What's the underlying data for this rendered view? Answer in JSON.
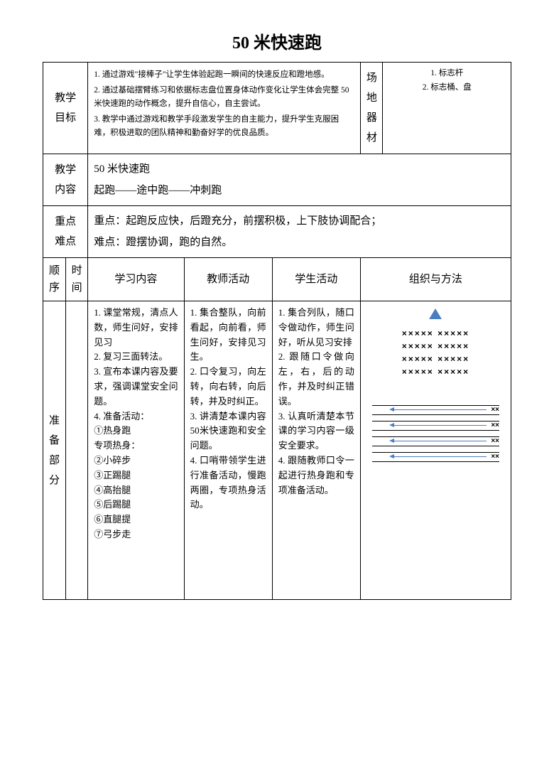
{
  "title": "50 米快速跑",
  "row1": {
    "label_goals_1": "教学",
    "label_goals_2": "目标",
    "goals_1": "1. 通过游戏\"接棒子\"让学生体验起跑一瞬间的快速反应和蹬地感。",
    "goals_2": "2. 通过基础摆臂练习和依据标志盘位置身体动作变化让学生体会完整 50 米快速跑的动作概念，提升自信心，自主尝试。",
    "goals_3": "3. 教学中通过游戏和教学手段激发学生的自主能力，提升学生克服困难，积极进取的团队精神和勤奋好学的优良品质。",
    "label_equip_1": "场",
    "label_equip_2": "地",
    "label_equip_3": "器",
    "label_equip_4": "材",
    "equip_1": "1. 标志杆",
    "equip_2": "2. 标志桶、盘"
  },
  "row2": {
    "label_1": "教学",
    "label_2": "内容",
    "line1": "50 米快速跑",
    "line2": "起跑——途中跑——冲刺跑"
  },
  "row3": {
    "label_1": "重点",
    "label_2": "难点",
    "line1": "重点：起跑反应快，后蹬充分，前摆积极，上下肢协调配合；",
    "line2": "难点：蹬摆协调，跑的自然。"
  },
  "headers": {
    "c1a": "顺",
    "c1b": "序",
    "c2a": "时",
    "c2b": "间",
    "c3": "学习内容",
    "c4": "教师活动",
    "c5": "学生活动",
    "c6": "组织与方法"
  },
  "prep": {
    "label_1": "准",
    "label_2": "备",
    "label_3": "部",
    "label_4": "分",
    "col_study": "1. 课堂常规，清点人数，师生问好，安排见习\n2. 复习三面转法。\n3. 宣布本课内容及要求，强调课堂安全问题。\n4. 准备活动：\n①热身跑\n专项热身：\n②小碎步\n③正踢腿\n④高抬腿\n⑤后踢腿\n⑥直腿提\n⑦弓步走",
    "col_teacher": "1. 集合整队，向前看起，向前看，师生问好，安排见习生。\n2. 口令复习，向左转，向右转，向后转，并及时纠正。\n3. 讲清楚本课内容50米快速跑和安全问题。\n4. 口哨带领学生进行准备活动，慢跑两圈，专项热身活动。",
    "col_student": "1. 集合列队，随口令做动作，师生问好，听从见习安排\n2. 跟随口令做向左，右，后的动作，并及时纠正错误。\n3. 认真听清楚本节课的学习内容一级安全要求。\n4. 跟随教师口令一起进行热身跑和专项准备活动。"
  },
  "colors": {
    "triangle": "#4a7dbf",
    "arrow": "#4a7dbf",
    "border": "#000000",
    "text": "#000000",
    "background": "#ffffff"
  }
}
